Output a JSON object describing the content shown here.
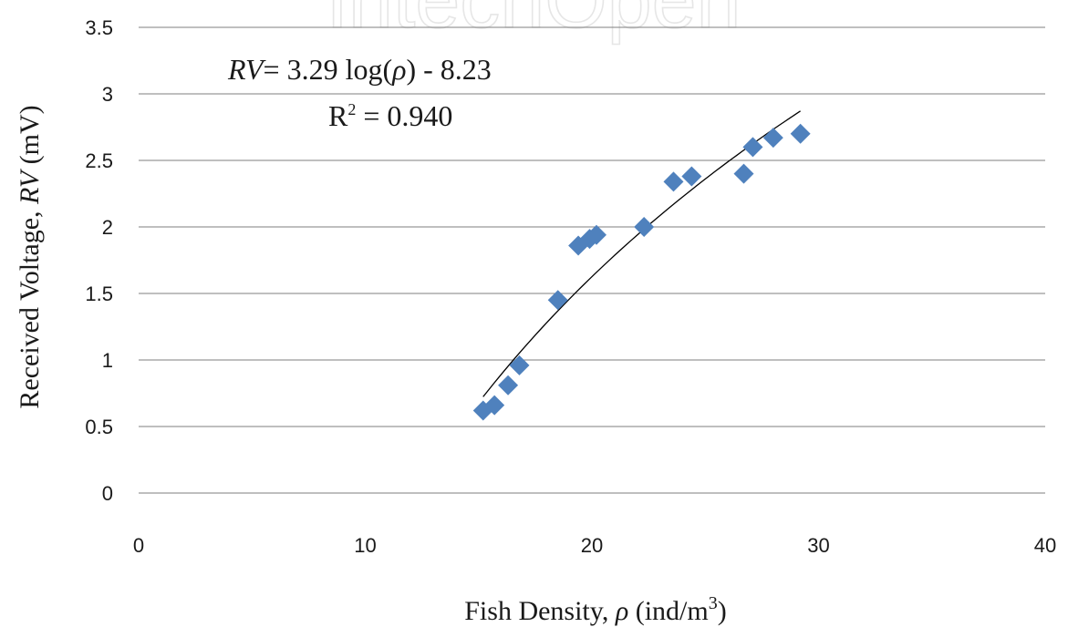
{
  "chart_data": {
    "type": "scatter",
    "xlabel": "Fish Density, ρ  (ind/m³)",
    "ylabel": "Received Voltage, RV (mV)",
    "xlim": [
      0,
      40
    ],
    "ylim": [
      0,
      3.5
    ],
    "x_ticks": [
      "0",
      "10",
      "20",
      "30",
      "40"
    ],
    "y_ticks": [
      "0",
      "0.5",
      "1",
      "1.5",
      "2",
      "2.5",
      "3",
      "3.5"
    ],
    "grid": "horizontal",
    "marker": "diamond",
    "marker_color": "#4F81BD",
    "points": [
      {
        "x": 15.2,
        "y": 0.62
      },
      {
        "x": 15.7,
        "y": 0.66
      },
      {
        "x": 16.3,
        "y": 0.81
      },
      {
        "x": 16.8,
        "y": 0.96
      },
      {
        "x": 18.5,
        "y": 1.45
      },
      {
        "x": 19.4,
        "y": 1.86
      },
      {
        "x": 19.9,
        "y": 1.91
      },
      {
        "x": 20.2,
        "y": 1.94
      },
      {
        "x": 22.3,
        "y": 2.0
      },
      {
        "x": 23.6,
        "y": 2.34
      },
      {
        "x": 24.4,
        "y": 2.38
      },
      {
        "x": 26.7,
        "y": 2.4
      },
      {
        "x": 27.1,
        "y": 2.6
      },
      {
        "x": 28.0,
        "y": 2.67
      },
      {
        "x": 29.2,
        "y": 2.7
      }
    ],
    "trendline": {
      "x_range": [
        15.2,
        29.2
      ],
      "color": "#000000"
    },
    "annotations": {
      "equation": "RV = 3.29 log(ρ) - 8.23",
      "r_squared": "R² = 0.940"
    }
  },
  "watermark": "IntechOpen"
}
